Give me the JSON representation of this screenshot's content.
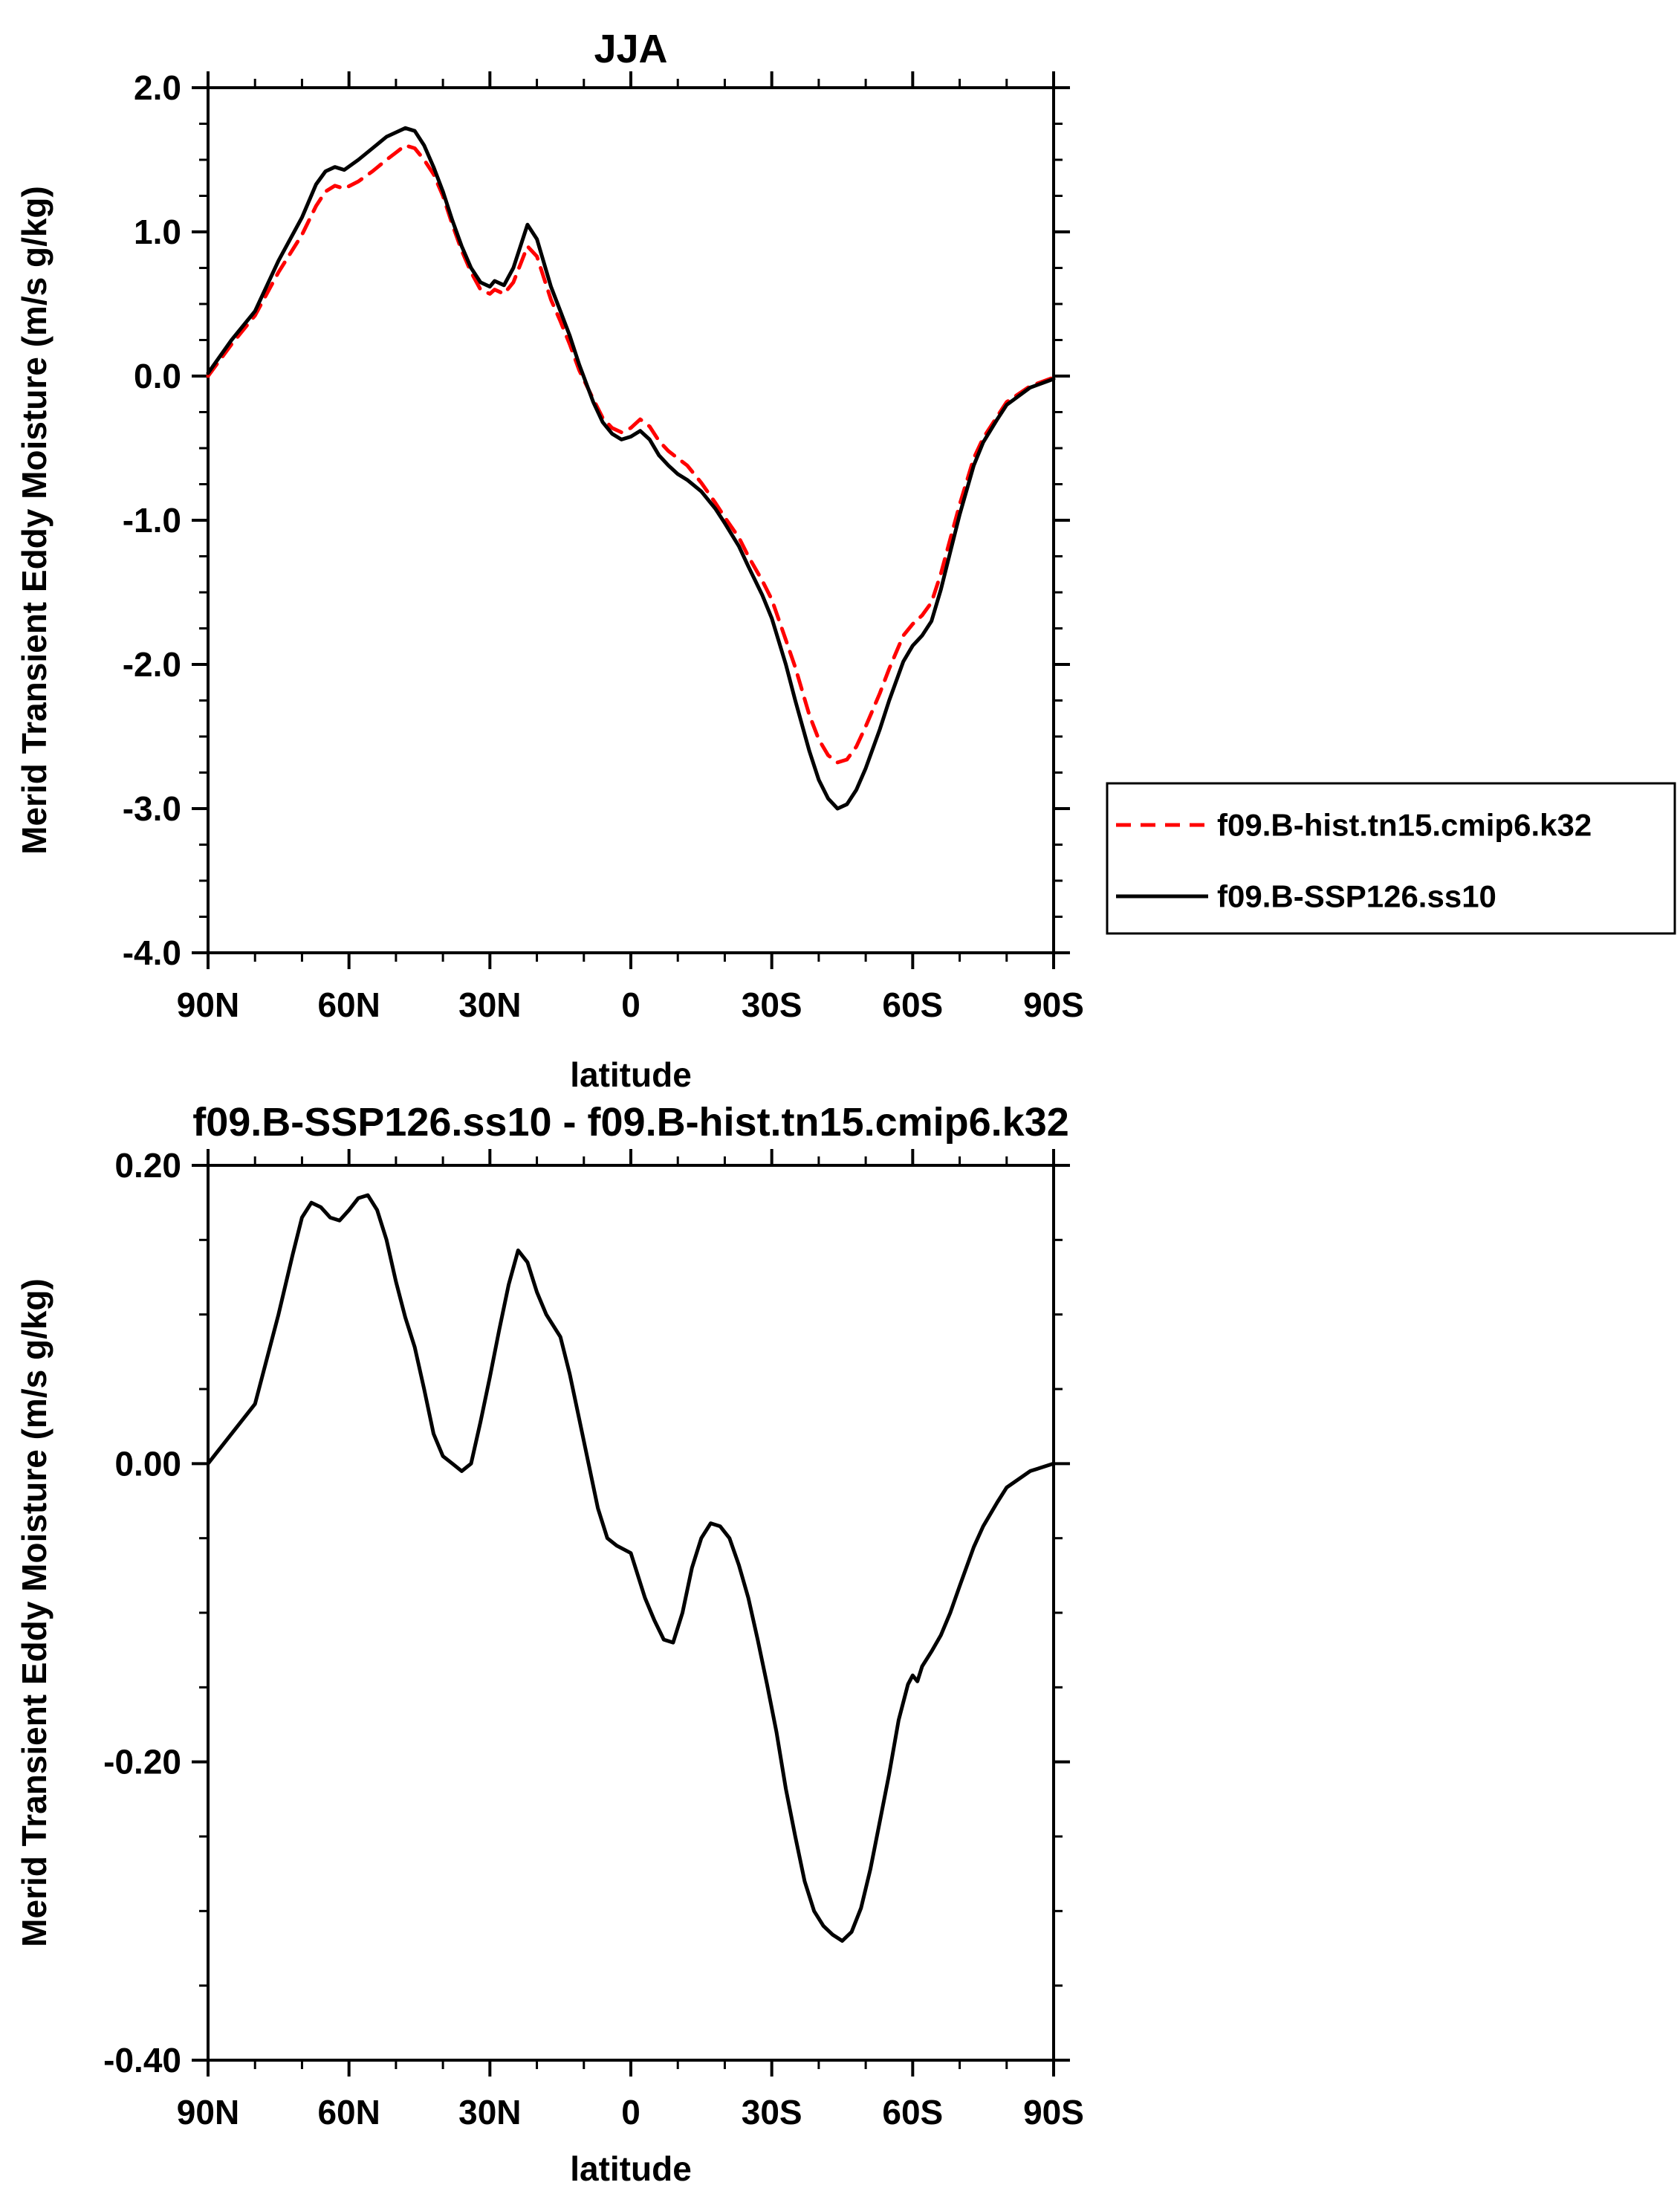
{
  "page": {
    "background": "#ffffff"
  },
  "chart_data": [
    {
      "type": "line",
      "title": "JJA",
      "xlabel": "latitude",
      "ylabel": "Merid Transient Eddy Moisture (m/s g/kg)",
      "xlim": [
        90,
        -90
      ],
      "ylim": [
        -4.0,
        2.0
      ],
      "grid": false,
      "xticks": [
        {
          "v": 90,
          "label": "90N"
        },
        {
          "v": 60,
          "label": "60N"
        },
        {
          "v": 30,
          "label": "30N"
        },
        {
          "v": 0,
          "label": "0"
        },
        {
          "v": -30,
          "label": "30S"
        },
        {
          "v": -60,
          "label": "60S"
        },
        {
          "v": -90,
          "label": "90S"
        }
      ],
      "yticks": [
        {
          "v": 2.0,
          "label": "2.0"
        },
        {
          "v": 1.0,
          "label": "1.0"
        },
        {
          "v": 0.0,
          "label": "0.0"
        },
        {
          "v": -1.0,
          "label": "-1.0"
        },
        {
          "v": -2.0,
          "label": "-2.0"
        },
        {
          "v": -3.0,
          "label": "-3.0"
        },
        {
          "v": -4.0,
          "label": "-4.0"
        }
      ],
      "x_minor_step": 10,
      "y_minor_step": 0.25,
      "legend": {
        "position": "outside-right",
        "entries": [
          {
            "label": "f09.B-hist.tn15.cmip6.k32",
            "color": "#ff0000",
            "dashed": true
          },
          {
            "label": "f09.B-SSP126.ss10",
            "color": "#000000",
            "dashed": false
          }
        ]
      },
      "series": [
        {
          "name": "f09.B-hist.tn15.cmip6.k32",
          "color": "#ff0000",
          "dashed": true,
          "x": [
            90,
            85,
            80,
            75,
            70,
            67,
            65,
            63,
            61,
            58,
            55,
            52,
            50,
            48,
            46,
            44,
            42,
            40,
            38,
            36,
            34,
            32,
            30,
            29,
            27,
            25,
            22,
            20,
            17,
            15,
            13,
            11,
            8,
            6,
            4,
            2,
            0,
            -2,
            -4,
            -6,
            -8,
            -10,
            -12,
            -15,
            -18,
            -20,
            -23,
            -25,
            -28,
            -30,
            -33,
            -35,
            -38,
            -40,
            -42,
            -44,
            -46,
            -48,
            -50,
            -53,
            -55,
            -58,
            -60,
            -62,
            -64,
            -66,
            -68,
            -70,
            -73,
            -75,
            -78,
            -80,
            -85,
            -90
          ],
          "y": [
            0.0,
            0.22,
            0.42,
            0.72,
            0.98,
            1.18,
            1.28,
            1.32,
            1.3,
            1.35,
            1.42,
            1.5,
            1.55,
            1.6,
            1.58,
            1.5,
            1.4,
            1.25,
            1.05,
            0.87,
            0.72,
            0.6,
            0.57,
            0.6,
            0.57,
            0.65,
            0.9,
            0.83,
            0.53,
            0.38,
            0.22,
            0.04,
            -0.16,
            -0.29,
            -0.36,
            -0.39,
            -0.36,
            -0.3,
            -0.35,
            -0.45,
            -0.52,
            -0.57,
            -0.62,
            -0.74,
            -0.88,
            -0.98,
            -1.12,
            -1.25,
            -1.42,
            -1.55,
            -1.83,
            -2.02,
            -2.35,
            -2.52,
            -2.63,
            -2.68,
            -2.66,
            -2.57,
            -2.43,
            -2.2,
            -2.03,
            -1.8,
            -1.72,
            -1.66,
            -1.57,
            -1.37,
            -1.13,
            -0.89,
            -0.57,
            -0.43,
            -0.28,
            -0.18,
            -0.07,
            -0.01
          ]
        },
        {
          "name": "f09.B-SSP126.ss10",
          "color": "#000000",
          "dashed": false,
          "x": [
            90,
            85,
            80,
            75,
            70,
            67,
            65,
            63,
            61,
            58,
            55,
            52,
            50,
            48,
            46,
            44,
            42,
            40,
            38,
            36,
            34,
            32,
            30,
            29,
            27,
            25,
            22,
            20,
            17,
            15,
            13,
            11,
            8,
            6,
            4,
            2,
            0,
            -2,
            -4,
            -6,
            -8,
            -10,
            -12,
            -15,
            -18,
            -20,
            -23,
            -25,
            -28,
            -30,
            -33,
            -35,
            -38,
            -40,
            -42,
            -44,
            -46,
            -48,
            -50,
            -53,
            -55,
            -58,
            -60,
            -62,
            -64,
            -66,
            -68,
            -70,
            -73,
            -75,
            -78,
            -80,
            -85,
            -90
          ],
          "y": [
            0.02,
            0.25,
            0.45,
            0.8,
            1.1,
            1.33,
            1.42,
            1.45,
            1.43,
            1.5,
            1.58,
            1.66,
            1.69,
            1.72,
            1.7,
            1.6,
            1.45,
            1.28,
            1.08,
            0.9,
            0.75,
            0.65,
            0.62,
            0.66,
            0.63,
            0.75,
            1.05,
            0.95,
            0.62,
            0.45,
            0.28,
            0.08,
            -0.18,
            -0.32,
            -0.4,
            -0.44,
            -0.42,
            -0.38,
            -0.44,
            -0.55,
            -0.62,
            -0.68,
            -0.72,
            -0.8,
            -0.92,
            -1.02,
            -1.18,
            -1.32,
            -1.52,
            -1.68,
            -2.0,
            -2.25,
            -2.6,
            -2.8,
            -2.93,
            -3.0,
            -2.97,
            -2.87,
            -2.72,
            -2.45,
            -2.25,
            -1.98,
            -1.87,
            -1.8,
            -1.7,
            -1.48,
            -1.22,
            -0.96,
            -0.62,
            -0.46,
            -0.3,
            -0.2,
            -0.08,
            -0.02
          ]
        }
      ]
    },
    {
      "type": "line",
      "title": "f09.B-SSP126.ss10 - f09.B-hist.tn15.cmip6.k32",
      "xlabel": "latitude",
      "ylabel": "Merid Transient Eddy Moisture (m/s g/kg)",
      "xlim": [
        90,
        -90
      ],
      "ylim": [
        -0.4,
        0.2
      ],
      "grid": false,
      "xticks": [
        {
          "v": 90,
          "label": "90N"
        },
        {
          "v": 60,
          "label": "60N"
        },
        {
          "v": 30,
          "label": "30N"
        },
        {
          "v": 0,
          "label": "0"
        },
        {
          "v": -30,
          "label": "30S"
        },
        {
          "v": -60,
          "label": "60S"
        },
        {
          "v": -90,
          "label": "90S"
        }
      ],
      "yticks": [
        {
          "v": 0.2,
          "label": "0.20"
        },
        {
          "v": 0.0,
          "label": "0.00"
        },
        {
          "v": -0.2,
          "label": "-0.20"
        },
        {
          "v": -0.4,
          "label": "-0.40"
        }
      ],
      "x_minor_step": 10,
      "y_minor_step": 0.05,
      "series": [
        {
          "name": "f09.B-SSP126.ss10 - f09.B-hist.tn15.cmip6.k32",
          "color": "#000000",
          "dashed": false,
          "x": [
            90,
            85,
            80,
            75,
            72,
            70,
            68,
            66,
            64,
            62,
            60,
            58,
            56,
            54,
            52,
            50,
            48,
            46,
            44,
            42,
            40,
            38,
            36,
            34,
            32,
            30,
            28,
            26,
            24,
            22,
            20,
            18,
            17,
            15,
            13,
            11,
            9,
            7,
            5,
            3,
            0,
            -3,
            -5,
            -7,
            -9,
            -11,
            -13,
            -15,
            -17,
            -19,
            -21,
            -23,
            -25,
            -27,
            -29,
            -31,
            -33,
            -35,
            -37,
            -39,
            -41,
            -43,
            -45,
            -47,
            -49,
            -51,
            -53,
            -55,
            -57,
            -59,
            -60,
            -61,
            -62,
            -64,
            -66,
            -68,
            -70,
            -73,
            -75,
            -78,
            -80,
            -85,
            -90
          ],
          "y": [
            0.0,
            0.02,
            0.04,
            0.1,
            0.14,
            0.165,
            0.175,
            0.172,
            0.165,
            0.163,
            0.17,
            0.178,
            0.18,
            0.17,
            0.15,
            0.122,
            0.098,
            0.078,
            0.05,
            0.02,
            0.005,
            0.0,
            -0.005,
            0.0,
            0.028,
            0.058,
            0.09,
            0.12,
            0.143,
            0.135,
            0.115,
            0.1,
            0.095,
            0.085,
            0.06,
            0.03,
            0.0,
            -0.03,
            -0.05,
            -0.055,
            -0.06,
            -0.09,
            -0.105,
            -0.118,
            -0.12,
            -0.1,
            -0.07,
            -0.05,
            -0.04,
            -0.042,
            -0.05,
            -0.068,
            -0.09,
            -0.118,
            -0.148,
            -0.18,
            -0.218,
            -0.25,
            -0.28,
            -0.3,
            -0.31,
            -0.316,
            -0.32,
            -0.314,
            -0.298,
            -0.272,
            -0.24,
            -0.208,
            -0.172,
            -0.148,
            -0.142,
            -0.146,
            -0.136,
            -0.126,
            -0.115,
            -0.1,
            -0.082,
            -0.056,
            -0.042,
            -0.026,
            -0.016,
            -0.005,
            0.0
          ]
        }
      ]
    }
  ]
}
